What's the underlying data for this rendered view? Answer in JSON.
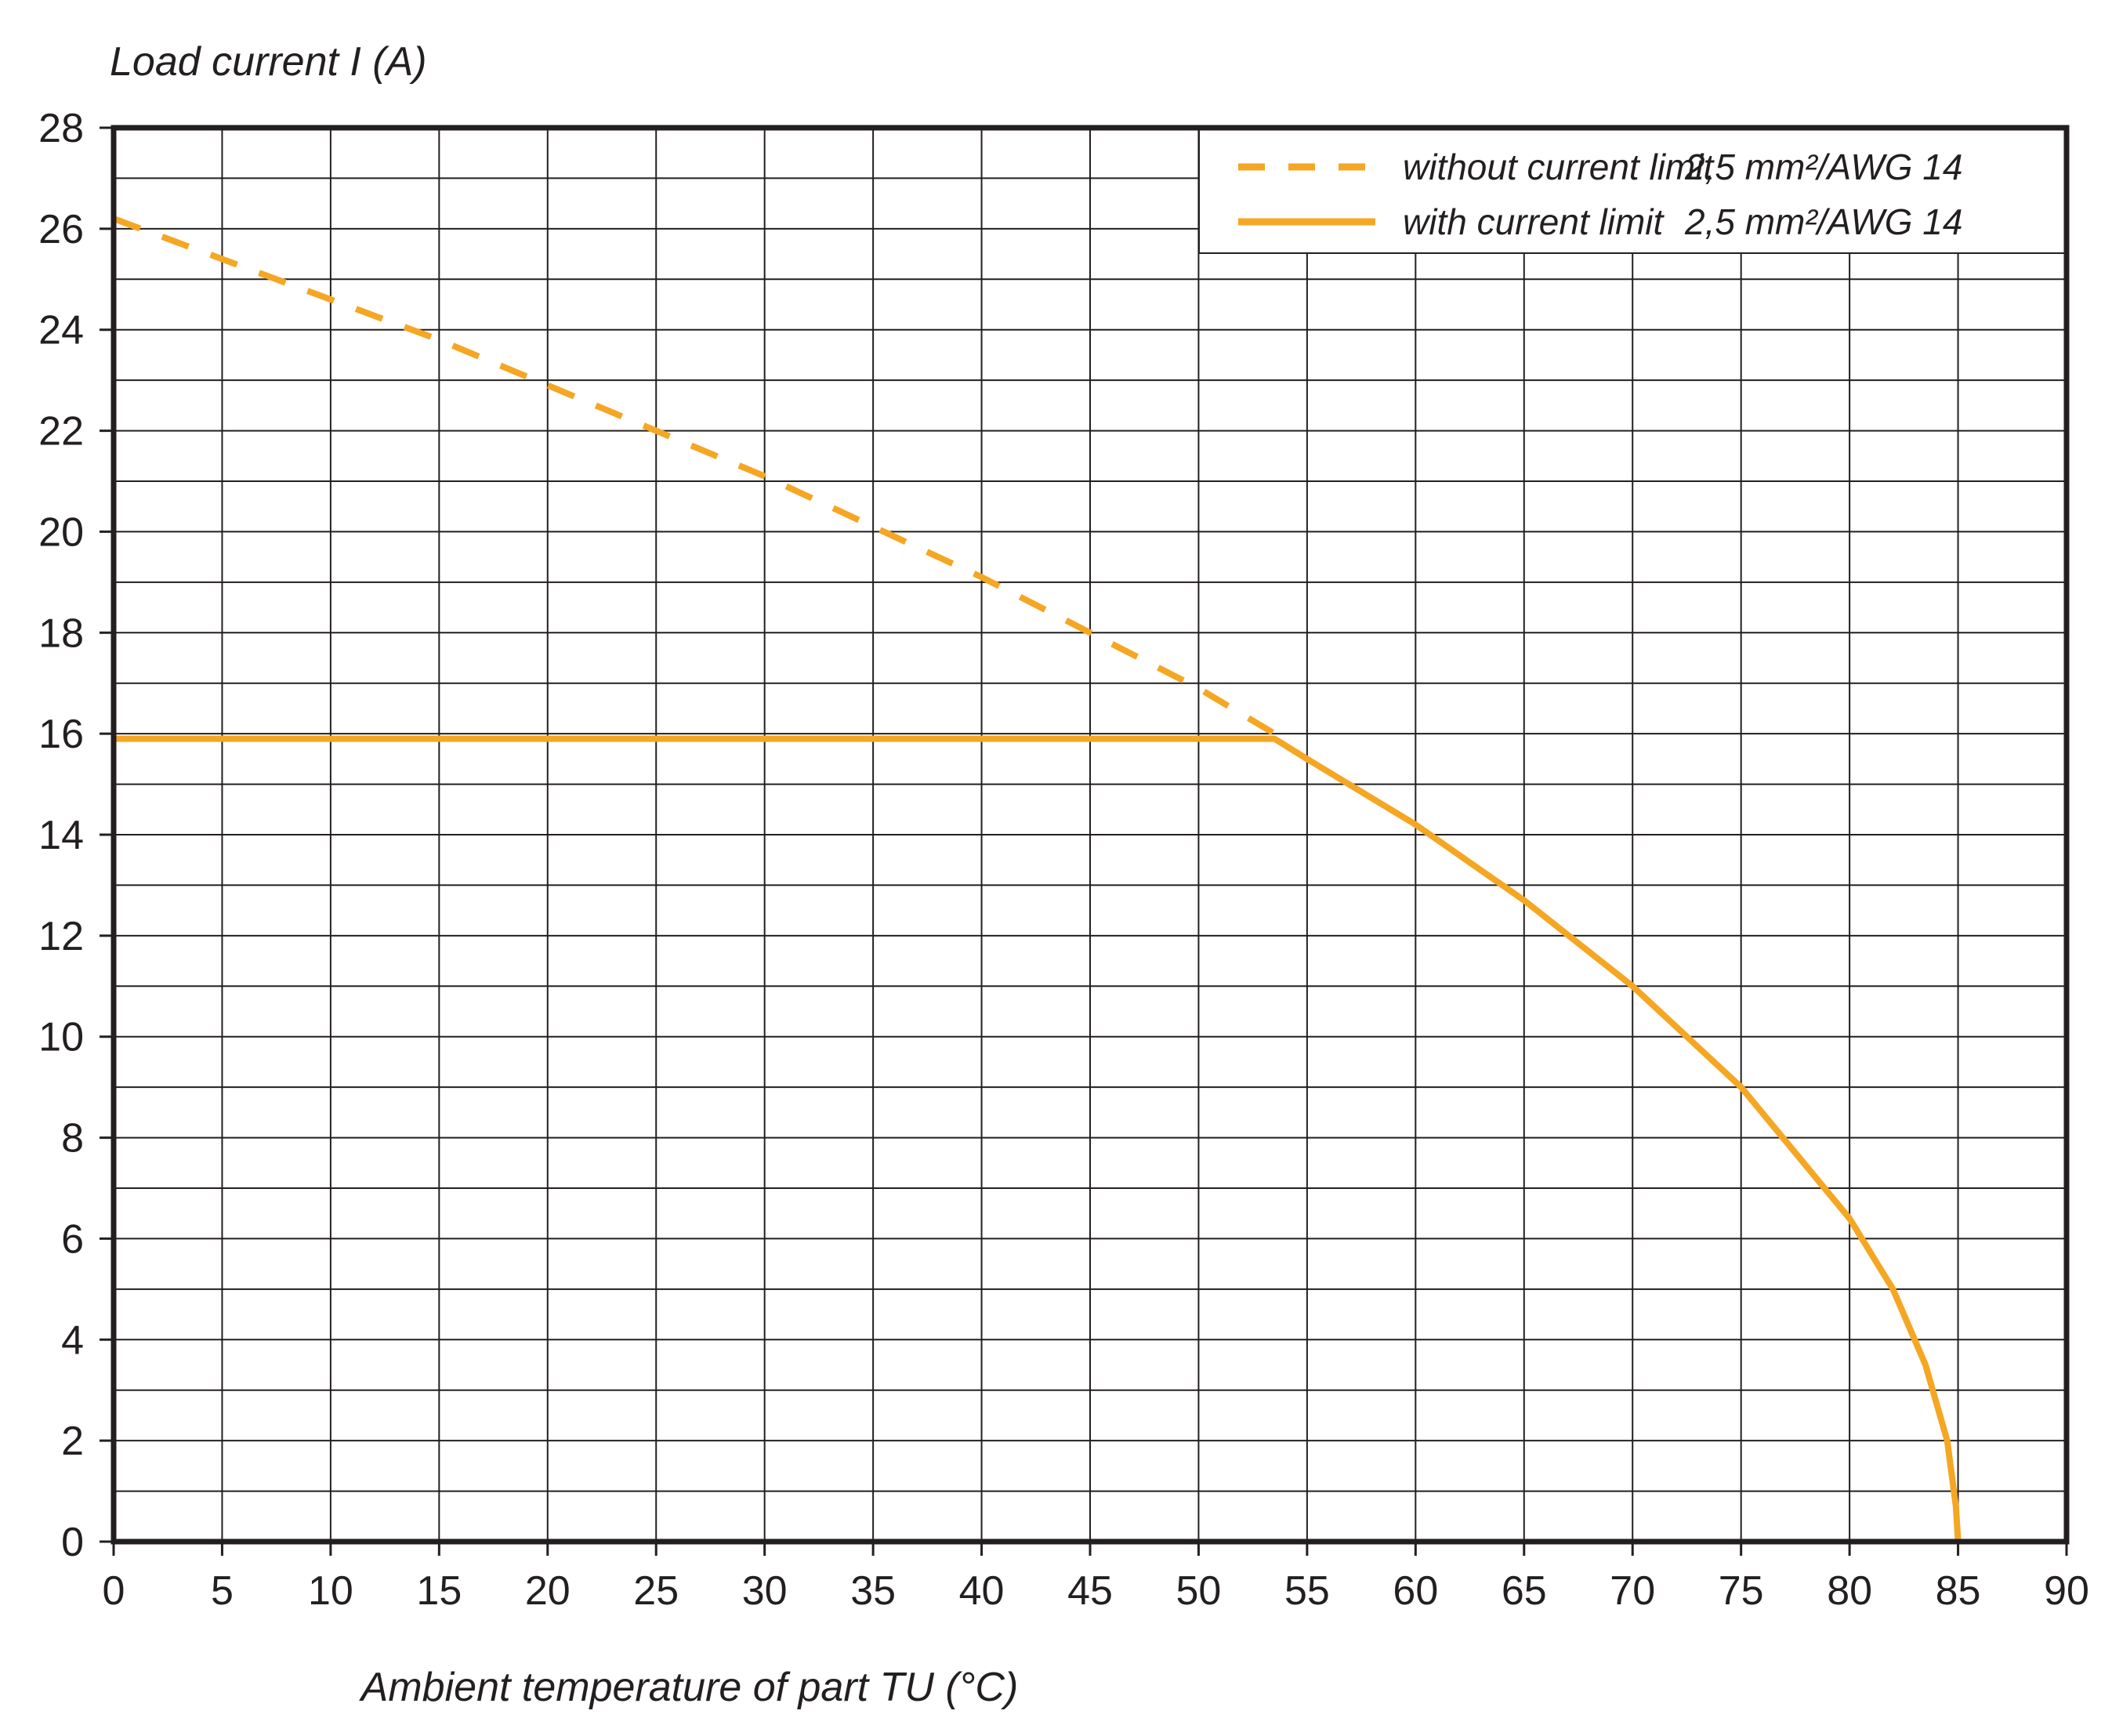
{
  "chart_data": {
    "type": "line",
    "ylabel": "Load current I (A)",
    "xlabel": "Ambient temperature of part TU (°C)",
    "xlim": [
      0,
      90
    ],
    "ylim": [
      0,
      28
    ],
    "x_ticks": [
      "0",
      "5",
      "10",
      "15",
      "20",
      "25",
      "30",
      "35",
      "40",
      "45",
      "50",
      "55",
      "60",
      "65",
      "70",
      "75",
      "80",
      "85",
      "90"
    ],
    "y_ticks": [
      "0",
      "2",
      "4",
      "6",
      "8",
      "10",
      "12",
      "14",
      "16",
      "18",
      "20",
      "22",
      "24",
      "26",
      "28"
    ],
    "grid": true,
    "minor_y_step": 1,
    "legend_position": "top-right",
    "colors": {
      "series": "#f5a623",
      "grid": "#231f20",
      "axis": "#231f20"
    },
    "series": [
      {
        "name": "without current limit",
        "wire": "2,5 mm²/AWG 14",
        "style": "dashed",
        "x": [
          0,
          5,
          10,
          15,
          20,
          25,
          30,
          35,
          40,
          45,
          50,
          53.5
        ],
        "y": [
          26.2,
          25.4,
          24.6,
          23.8,
          22.9,
          22.0,
          21.1,
          20.1,
          19.1,
          18.0,
          16.9,
          16.0
        ]
      },
      {
        "name": "with current limit",
        "wire": "2,5 mm²/AWG 14",
        "style": "solid",
        "x": [
          0,
          53.5,
          55,
          60,
          65,
          70,
          75,
          80,
          82,
          83.5,
          84.5,
          84.9,
          85
        ],
        "y": [
          15.9,
          15.9,
          15.5,
          14.2,
          12.7,
          11.0,
          9.0,
          6.4,
          5.0,
          3.5,
          2.0,
          0.7,
          0
        ]
      }
    ]
  }
}
